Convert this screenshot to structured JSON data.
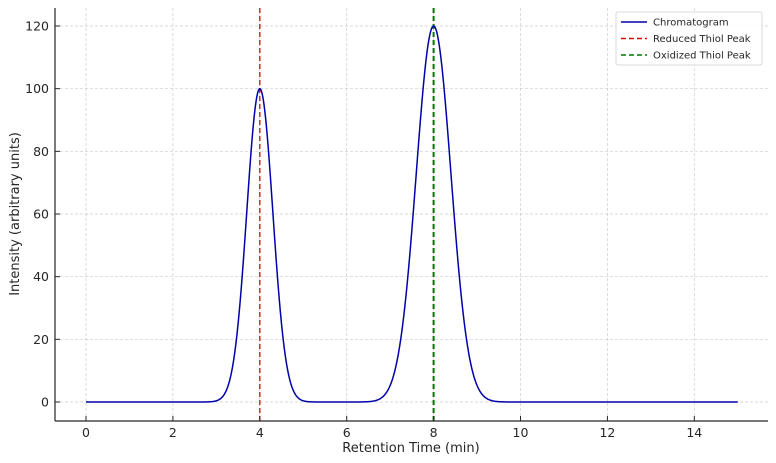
{
  "chart_data": {
    "type": "line",
    "title": "",
    "xlabel": "Retention Time (min)",
    "ylabel": "Intensity (arbitrary units)",
    "xlim": [
      -0.75,
      15.75
    ],
    "ylim": [
      -6,
      126
    ],
    "xticks": [
      0,
      2,
      4,
      6,
      8,
      10,
      12,
      14
    ],
    "yticks": [
      0,
      20,
      40,
      60,
      80,
      100,
      120
    ],
    "grid": true,
    "legend_position": "upper right",
    "series": [
      {
        "name": "Chromatogram",
        "style": "solid",
        "color": "#0000aa",
        "x_range": [
          0,
          15
        ],
        "model": "sum of gaussians",
        "peaks": [
          {
            "center": 4,
            "height": 100,
            "sigma": 0.3
          },
          {
            "center": 8,
            "height": 120,
            "sigma": 0.4
          }
        ]
      },
      {
        "name": "Reduced Thiol Peak",
        "style": "dashed",
        "color": "#dd0000",
        "type": "vline",
        "x": 4
      },
      {
        "name": "Oxidized Thiol Peak",
        "style": "dashed",
        "color": "#007700",
        "type": "vline",
        "x": 8
      }
    ]
  },
  "legend": {
    "items": [
      {
        "label": "Chromatogram",
        "color": "#0000aa",
        "dash": ""
      },
      {
        "label": "Reduced Thiol Peak",
        "color": "#dd0000",
        "dash": "5,3"
      },
      {
        "label": "Oxidized Thiol Peak",
        "color": "#007700",
        "dash": "5,3"
      }
    ]
  }
}
